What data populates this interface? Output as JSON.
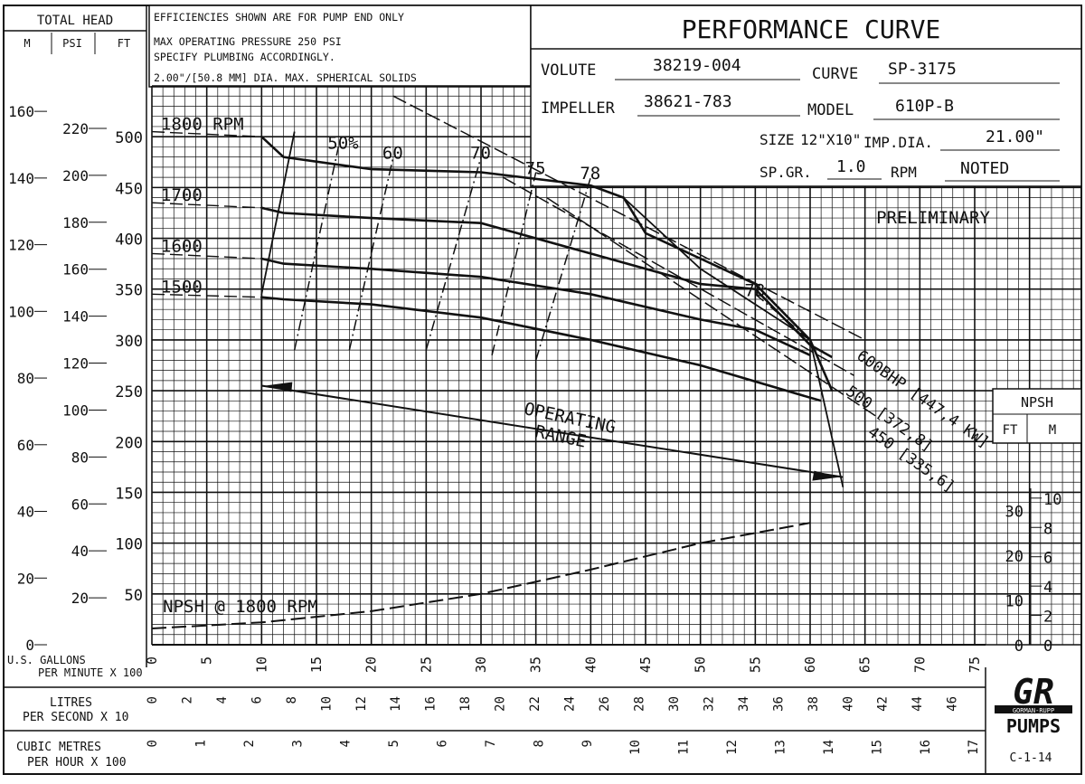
{
  "header": {
    "total_head": "TOTAL HEAD",
    "col_m": "M",
    "col_psi": "PSI",
    "col_ft": "FT",
    "notes": [
      "EFFICIENCIES SHOWN ARE FOR PUMP END ONLY",
      "MAX OPERATING PRESSURE 250 PSI",
      "SPECIFY PLUMBING ACCORDINGLY.",
      "2.00\"/[50.8 MM] DIA. MAX. SPHERICAL SOLIDS"
    ]
  },
  "title_block": {
    "title": "PERFORMANCE CURVE",
    "volute_label": "VOLUTE",
    "volute": "38219-004",
    "curve_label": "CURVE",
    "curve": "SP-3175",
    "impeller_label": "IMPELLER",
    "impeller": "38621-783",
    "model_label": "MODEL",
    "model": "610P-B",
    "size_label": "SIZE",
    "size": "12\"X10\"",
    "impdia_label": "IMP.DIA.",
    "impdia": "21.00\"",
    "spgr_label": "SP.GR.",
    "spgr": "1.0",
    "rpm_label": "RPM",
    "rpm": "NOTED"
  },
  "npsh_header": {
    "title": "NPSH",
    "ft": "FT",
    "m": "M"
  },
  "bottom": {
    "gpm_label_1": "U.S. GALLONS",
    "gpm_label_2": "PER MINUTE X 100",
    "lps_label_1": "LITRES",
    "lps_label_2": "PER SECOND  X 10",
    "cmh_label_1": "CUBIC METRES",
    "cmh_label_2": "PER HOUR  X 100",
    "drawing_no": "C-1-14"
  },
  "logo": {
    "mark": "GR",
    "sub": "GORMAN-RUPP",
    "pumps": "PUMPS"
  },
  "brand_color": "#111111",
  "chart_data": {
    "type": "line",
    "x_axis": {
      "label": "U.S. GALLONS PER MINUTE X 100",
      "range": [
        0,
        75
      ],
      "ticks": [
        "0",
        "5",
        "10",
        "15",
        "20",
        "25",
        "30",
        "35",
        "40",
        "45",
        "50",
        "55",
        "60",
        "65",
        "70",
        "75"
      ]
    },
    "y_axis": {
      "unit": "FT",
      "range": [
        0,
        550
      ],
      "ticks": [
        "50",
        "100",
        "150",
        "200",
        "250",
        "300",
        "350",
        "400",
        "450",
        "500"
      ]
    },
    "y_axis_psi": {
      "ticks": [
        "20",
        "40",
        "60",
        "80",
        "100",
        "120",
        "140",
        "160",
        "180",
        "200",
        "220"
      ]
    },
    "y_axis_m": {
      "ticks": [
        "0",
        "20",
        "40",
        "60",
        "80",
        "100",
        "120",
        "140",
        "160"
      ]
    },
    "x_axis_lps": {
      "ticks": [
        "0",
        "2",
        "4",
        "6",
        "8",
        "10",
        "12",
        "14",
        "16",
        "18",
        "20",
        "22",
        "24",
        "26",
        "28",
        "30",
        "32",
        "34",
        "36",
        "38",
        "40",
        "42",
        "44",
        "46"
      ]
    },
    "x_axis_cmh": {
      "ticks": [
        "0",
        "1",
        "2",
        "3",
        "4",
        "5",
        "6",
        "7",
        "8",
        "9",
        "10",
        "11",
        "12",
        "13",
        "14",
        "15",
        "16",
        "17"
      ]
    },
    "npsh_axis": {
      "ft_ticks": [
        "0",
        "10",
        "20",
        "30"
      ],
      "m_ticks": [
        "0",
        "2",
        "4",
        "6",
        "8",
        "10"
      ]
    },
    "series": [
      {
        "name": "1800 RPM",
        "points": [
          [
            0,
            505
          ],
          [
            10,
            500
          ],
          [
            12,
            480
          ],
          [
            20,
            468
          ],
          [
            30,
            465
          ],
          [
            40,
            452
          ],
          [
            43,
            440
          ],
          [
            45,
            405
          ],
          [
            50,
            380
          ],
          [
            55,
            355
          ],
          [
            60,
            300
          ],
          [
            62,
            250
          ]
        ]
      },
      {
        "name": "1700",
        "points": [
          [
            0,
            435
          ],
          [
            10,
            430
          ],
          [
            12,
            425
          ],
          [
            20,
            420
          ],
          [
            30,
            415
          ],
          [
            40,
            385
          ],
          [
            50,
            355
          ],
          [
            55,
            350
          ],
          [
            60,
            295
          ],
          [
            62,
            283
          ]
        ]
      },
      {
        "name": "1600",
        "points": [
          [
            0,
            385
          ],
          [
            10,
            380
          ],
          [
            12,
            375
          ],
          [
            20,
            370
          ],
          [
            30,
            362
          ],
          [
            40,
            345
          ],
          [
            50,
            320
          ],
          [
            55,
            310
          ],
          [
            60,
            285
          ]
        ]
      },
      {
        "name": "1500",
        "points": [
          [
            0,
            345
          ],
          [
            10,
            342
          ],
          [
            12,
            340
          ],
          [
            20,
            335
          ],
          [
            30,
            322
          ],
          [
            40,
            300
          ],
          [
            50,
            275
          ],
          [
            61,
            240
          ]
        ]
      }
    ],
    "efficiency_lines": [
      {
        "label": "50%",
        "points": [
          [
            13,
            290
          ],
          [
            17,
            490
          ]
        ]
      },
      {
        "label": "60",
        "points": [
          [
            18,
            290
          ],
          [
            22,
            480
          ]
        ]
      },
      {
        "label": "70",
        "points": [
          [
            25,
            290
          ],
          [
            30,
            480
          ]
        ]
      },
      {
        "label": "75",
        "points": [
          [
            31,
            285
          ],
          [
            35,
            465
          ]
        ]
      },
      {
        "label": "78",
        "points": [
          [
            35,
            280
          ],
          [
            40,
            460
          ]
        ]
      },
      {
        "label": "78",
        "points": [
          [
            55,
            345
          ],
          [
            60,
            300
          ]
        ]
      }
    ],
    "bhp_lines": [
      {
        "label": "600BHP [447,4 KW]",
        "points": [
          [
            22,
            540
          ],
          [
            65,
            300
          ]
        ]
      },
      {
        "label": "500 [372,8]",
        "points": [
          [
            32,
            460
          ],
          [
            64,
            265
          ]
        ]
      },
      {
        "label": "450 [335,6]",
        "points": [
          [
            36,
            440
          ],
          [
            66,
            225
          ]
        ]
      }
    ],
    "operating_range": {
      "label_1": "OPERATING",
      "label_2": "RANGE",
      "points": [
        [
          10,
          255
        ],
        [
          63,
          165
        ]
      ]
    },
    "operating_boundaries": [
      {
        "points": [
          [
            13,
            505
          ],
          [
            10,
            345
          ],
          [
            10,
            220
          ]
        ]
      },
      {
        "points": [
          [
            43,
            440
          ],
          [
            50,
            370
          ],
          [
            60,
            300
          ],
          [
            63,
            155
          ]
        ]
      }
    ],
    "npsh_curve": {
      "label": "NPSH @ 1800 RPM",
      "points": [
        [
          0,
          16
        ],
        [
          10,
          22
        ],
        [
          20,
          33
        ],
        [
          30,
          50
        ],
        [
          40,
          74
        ],
        [
          50,
          100
        ],
        [
          60,
          120
        ]
      ]
    },
    "annotations": {
      "preliminary": "PRELIMINARY"
    }
  }
}
